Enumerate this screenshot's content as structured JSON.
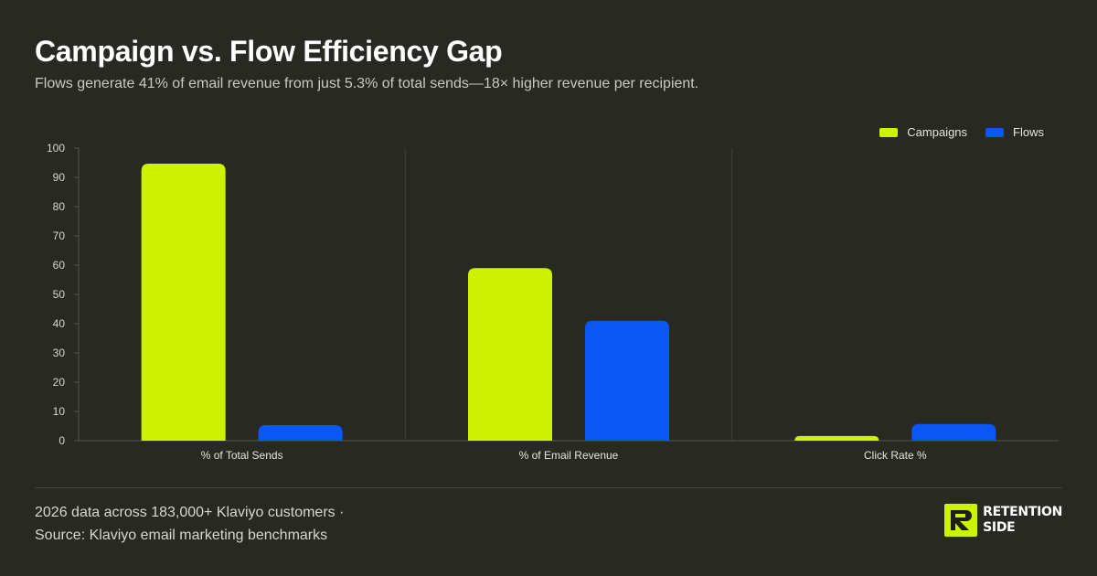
{
  "title": "Campaign vs. Flow Efficiency Gap",
  "subtitle": "Flows generate 41% of email revenue from just 5.3% of total sends—18× higher revenue per recipient.",
  "colors": {
    "campaigns": "#ccf200",
    "flows": "#0b57f5",
    "background": "#282922"
  },
  "footer": {
    "line1": "2026 data across 183,000+ Klaviyo customers ·",
    "line2": "Source: Klaviyo email marketing benchmarks"
  },
  "brand": {
    "line1": "RETENTION",
    "line2": "SIDE",
    "logo_icon": "retention-side-logo"
  },
  "chart_data": {
    "type": "bar",
    "categories": [
      "% of Total Sends",
      "% of Email Revenue",
      "Click Rate %"
    ],
    "series": [
      {
        "name": "Campaigns",
        "values": [
          94.7,
          59,
          1.6
        ]
      },
      {
        "name": "Flows",
        "values": [
          5.3,
          41,
          5.7
        ]
      }
    ],
    "ylim": [
      0,
      100
    ],
    "yticks": [
      0,
      10,
      20,
      30,
      40,
      50,
      60,
      70,
      80,
      90,
      100
    ],
    "legend": "top-right",
    "grid": "vertical separators between categories"
  }
}
